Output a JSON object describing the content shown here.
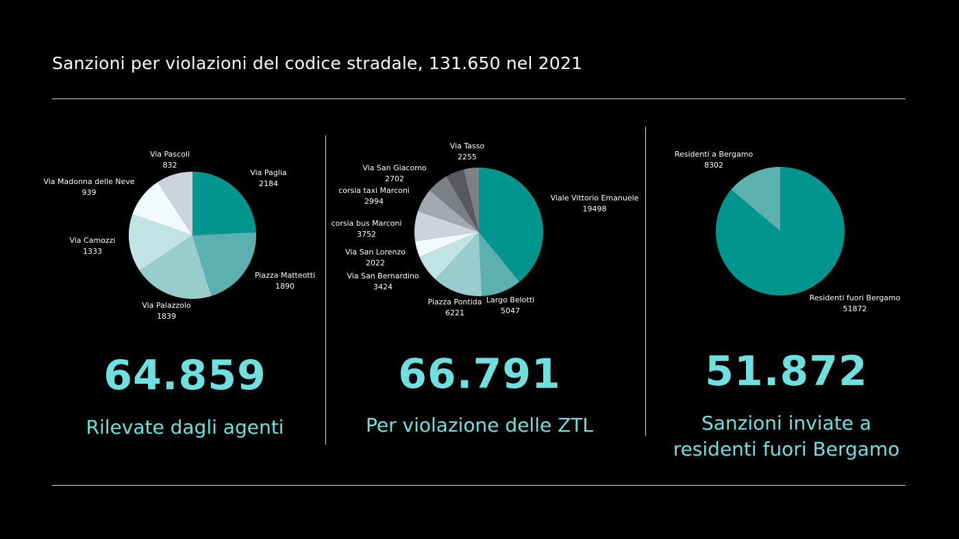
{
  "title": "Sanzioni per violazioni del codice stradale, 131.650 nel 2021",
  "colors": {
    "teal": "#009690",
    "accent_text": "#6fe0e0"
  },
  "chart_data": [
    {
      "type": "pie",
      "title": "",
      "headline_value": "64.859",
      "caption": "Rilevate dagli agenti",
      "slices": [
        {
          "label": "Via Paglia",
          "value": 2184,
          "color": "#009690"
        },
        {
          "label": "Piazza Matteotti",
          "value": 1890,
          "color": "#5cb0af"
        },
        {
          "label": "Via Palazzolo",
          "value": 1839,
          "color": "#98cccd"
        },
        {
          "label": "Via Camozzi",
          "value": 1333,
          "color": "#c2e3e5"
        },
        {
          "label": "Via Madonna delle Neve",
          "value": 939,
          "color": "#f0fbff"
        },
        {
          "label": "Via Pascoli",
          "value": 832,
          "color": "#cdd3da"
        }
      ]
    },
    {
      "type": "pie",
      "title": "",
      "headline_value": "66.791",
      "caption": "Per violazione delle ZTL",
      "slices": [
        {
          "label": "Viale Vittorio Emanuele",
          "value": 19498,
          "color": "#009690"
        },
        {
          "label": "Largo Belotti",
          "value": 5047,
          "color": "#5cb0af"
        },
        {
          "label": "Piazza Pontida",
          "value": 6221,
          "color": "#98cccd"
        },
        {
          "label": "Via San Bernardino",
          "value": 3424,
          "color": "#c2e3e5"
        },
        {
          "label": "Via San Lorenzo",
          "value": 2022,
          "color": "#f0fbff"
        },
        {
          "label": "corsia bus Marconi",
          "value": 3752,
          "color": "#cdd3da"
        },
        {
          "label": "corsia taxi Marconi",
          "value": 2994,
          "color": "#a4a8b0"
        },
        {
          "label": "Via San Giacomo",
          "value": 2702,
          "color": "#7d7f86"
        },
        {
          "label": "Via Tasso",
          "value": 2255,
          "color": "#58585d"
        }
      ],
      "extra_slice": {
        "value": 1900,
        "color": "#808080"
      }
    },
    {
      "type": "pie",
      "title": "",
      "headline_value": "51.872",
      "caption_lines": [
        "Sanzioni inviate a",
        "residenti fuori Bergamo"
      ],
      "slices": [
        {
          "label": "Residenti fuori Bergamo",
          "value": 51872,
          "color": "#009690"
        },
        {
          "label": "Residenti a Bergamo",
          "value": 8302,
          "color": "#5cb0af"
        }
      ]
    }
  ]
}
